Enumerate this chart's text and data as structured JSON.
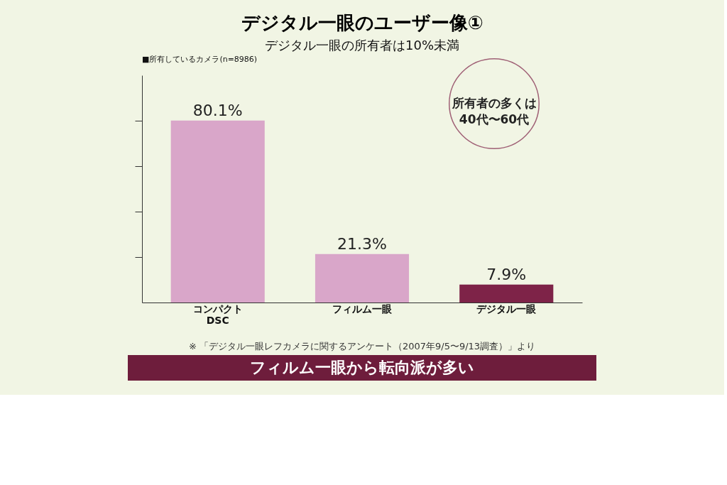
{
  "chart_data": {
    "type": "bar",
    "title": "デジタル一眼のユーザー像①",
    "subtitle": "デジタル一眼の所有者は10%未満",
    "categories": [
      "コンパクト\nDSC",
      "フィルム一眼",
      "デジタル一眼"
    ],
    "values": [
      80.1,
      21.3,
      7.9
    ],
    "colors": [
      "#d9a6c9",
      "#d9a6c9",
      "#7e2348"
    ],
    "value_labels": [
      "80.1%",
      "21.3%",
      "7.9%"
    ],
    "ylim": [
      0,
      100
    ],
    "yticks": [
      {
        "value": 20,
        "label": null
      },
      {
        "value": 40,
        "label": null
      },
      {
        "value": 60,
        "label": null
      },
      {
        "value": 80,
        "label": null
      }
    ],
    "grid": false,
    "annotations": [
      "■所有しているカメラ(n=8986)",
      "所有者の多くは\n40代〜60代",
      "※ 「デジタル一眼レフカメラに関するアンケート（2007年9/5〜9/13調査）」より",
      "フィルム一眼から転向派が多い"
    ]
  }
}
